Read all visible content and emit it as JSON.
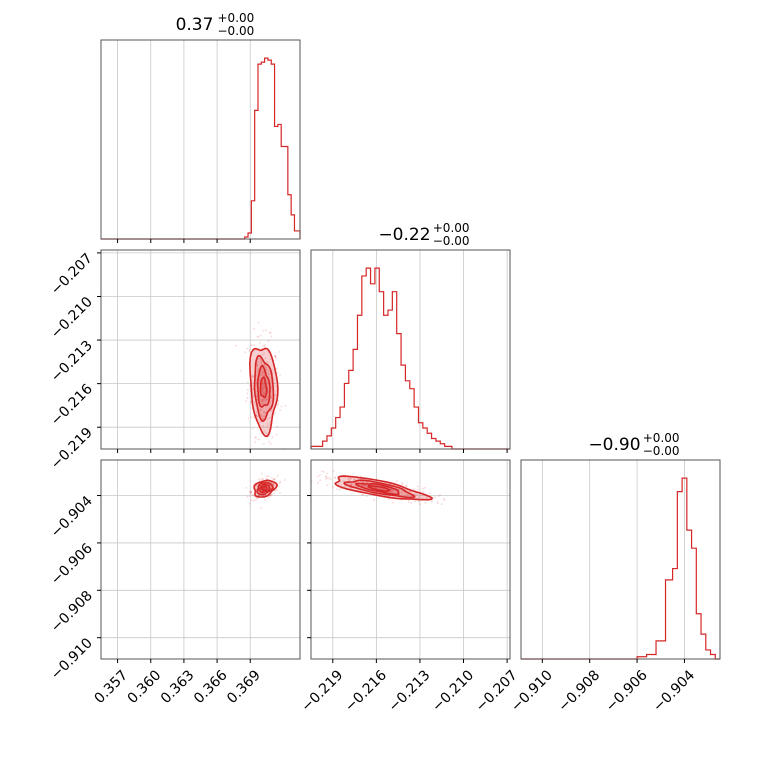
{
  "chart_data": {
    "type": "corner",
    "color": "#d62728",
    "grid": true,
    "parameters": [
      {
        "title": {
          "value": "0.37",
          "plus": "+0.00",
          "minus": "−0.00"
        },
        "xlim": [
          0.3555,
          0.3735
        ],
        "xticks": [
          0.357,
          0.36,
          0.363,
          0.366,
          0.369
        ],
        "xtick_labels": [
          "0.357",
          "0.360",
          "0.363",
          "0.366",
          "0.369"
        ],
        "yticks": [],
        "ytick_labels": [],
        "hist": {
          "edges": [
            0.3555,
            0.3685,
            0.3688,
            0.3691,
            0.3694,
            0.3697,
            0.37,
            0.3703,
            0.3706,
            0.3709,
            0.3712,
            0.3715,
            0.3718,
            0.3721,
            0.3724,
            0.3727,
            0.373,
            0.3735
          ],
          "counts": [
            0,
            1,
            3,
            19,
            64,
            87,
            88,
            90,
            89,
            87,
            56,
            57,
            46,
            46,
            22,
            12,
            4
          ]
        }
      },
      {
        "title": {
          "value": "−0.22",
          "plus": "+0.00",
          "minus": "−0.00"
        },
        "xlim": [
          -0.2205,
          -0.2068
        ],
        "xticks": [
          -0.219,
          -0.216,
          -0.213,
          -0.21,
          -0.207
        ],
        "xtick_labels": [
          "−0.219",
          "−0.216",
          "−0.213",
          "−0.210",
          "−0.207"
        ],
        "yticks": [
          -0.207,
          -0.21,
          -0.213,
          -0.216,
          -0.219
        ],
        "ytick_labels": [
          "−0.207",
          "−0.210",
          "−0.213",
          "−0.216",
          "−0.219"
        ],
        "hist": {
          "edges": [
            -0.2205,
            -0.2197,
            -0.2194,
            -0.2191,
            -0.2188,
            -0.2185,
            -0.2182,
            -0.2179,
            -0.2176,
            -0.2173,
            -0.217,
            -0.2167,
            -0.2164,
            -0.2161,
            -0.2158,
            -0.2155,
            -0.2152,
            -0.2149,
            -0.2146,
            -0.2143,
            -0.214,
            -0.2137,
            -0.2134,
            -0.2131,
            -0.2128,
            -0.2125,
            -0.2122,
            -0.2119,
            -0.2116,
            -0.2113,
            -0.2108,
            -0.2103,
            -0.2068
          ],
          "counts": [
            1,
            3,
            5,
            8,
            12,
            16,
            25,
            30,
            38,
            51,
            66,
            69,
            63,
            69,
            60,
            51,
            53,
            60,
            44,
            32,
            26,
            23,
            16,
            10,
            8,
            6,
            4,
            3,
            2,
            1,
            0,
            0
          ]
        }
      },
      {
        "title": {
          "value": "−0.90",
          "plus": "+0.00",
          "minus": "−0.00"
        },
        "xlim": [
          -0.9109,
          -0.9025
        ],
        "xticks": [
          -0.91,
          -0.908,
          -0.906,
          -0.904
        ],
        "xtick_labels": [
          "−0.910",
          "−0.908",
          "−0.906",
          "−0.904"
        ],
        "yticks": [
          -0.904,
          -0.906,
          -0.908,
          -0.91
        ],
        "ytick_labels": [
          "−0.904",
          "−0.906",
          "−0.908",
          "−0.910"
        ],
        "hist": {
          "edges": [
            -0.9109,
            -0.906,
            -0.9056,
            -0.9052,
            -0.9048,
            -0.9045,
            -0.9043,
            -0.9041,
            -0.9039,
            -0.9037,
            -0.9035,
            -0.9033,
            -0.9031,
            -0.9029,
            -0.9027,
            -0.9025
          ],
          "counts": [
            0,
            1,
            2,
            8,
            35,
            40,
            74,
            80,
            57,
            49,
            20,
            11,
            4,
            2,
            0
          ]
        }
      }
    ],
    "pairs": [
      {
        "x": 0,
        "y": 1,
        "center": [
          0.3702,
          -0.2163
        ],
        "sigma": [
          0.00055,
          0.00135
        ],
        "rho": -0.15
      },
      {
        "x": 0,
        "y": 2,
        "center": [
          0.3703,
          -0.9037
        ],
        "sigma": [
          0.00045,
          0.00016
        ],
        "rho": 0.3
      },
      {
        "x": 1,
        "y": 2,
        "center": [
          -0.2158,
          -0.9037
        ],
        "sigma": [
          0.00145,
          0.00022
        ],
        "rho": -0.75
      }
    ]
  }
}
